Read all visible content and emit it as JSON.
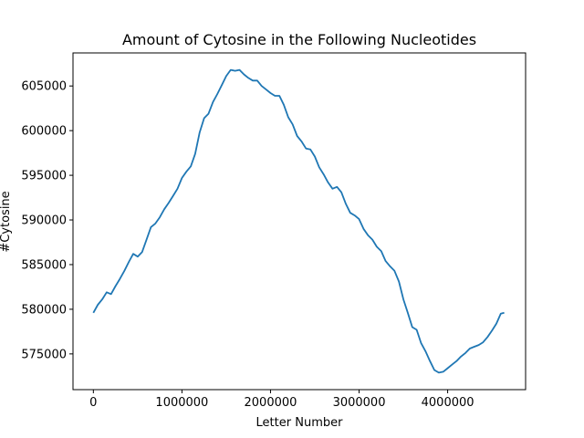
{
  "chart_data": {
    "type": "line",
    "title": "Amount of Cytosine in the Following Nucleotides",
    "xlabel": "Letter Number",
    "ylabel": "#Cytosine",
    "xlim": [
      -230000,
      4880000
    ],
    "ylim": [
      571000,
      608700
    ],
    "x_ticks": [
      0,
      1000000,
      2000000,
      3000000,
      4000000
    ],
    "x_tick_labels": [
      "0",
      "1000000",
      "2000000",
      "3000000",
      "4000000"
    ],
    "y_ticks": [
      575000,
      580000,
      585000,
      590000,
      595000,
      600000,
      605000
    ],
    "y_tick_labels": [
      "575000",
      "580000",
      "585000",
      "590000",
      "595000",
      "600000",
      "605000"
    ],
    "grid": false,
    "legend": "none",
    "line_color": "#1f77b4",
    "series": [
      {
        "x": [
          0,
          50000,
          100000,
          150000,
          200000,
          250000,
          300000,
          350000,
          400000,
          450000,
          500000,
          550000,
          600000,
          650000,
          700000,
          750000,
          800000,
          850000,
          900000,
          950000,
          1000000,
          1050000,
          1100000,
          1150000,
          1200000,
          1250000,
          1300000,
          1350000,
          1400000,
          1450000,
          1500000,
          1550000,
          1600000,
          1650000,
          1700000,
          1750000,
          1800000,
          1850000,
          1900000,
          1950000,
          2000000,
          2050000,
          2100000,
          2150000,
          2200000,
          2250000,
          2300000,
          2350000,
          2400000,
          2450000,
          2500000,
          2550000,
          2600000,
          2650000,
          2700000,
          2750000,
          2800000,
          2850000,
          2900000,
          2950000,
          3000000,
          3050000,
          3100000,
          3150000,
          3200000,
          3250000,
          3300000,
          3350000,
          3400000,
          3450000,
          3500000,
          3550000,
          3600000,
          3650000,
          3700000,
          3750000,
          3800000,
          3850000,
          3900000,
          3950000,
          4000000,
          4050000,
          4100000,
          4150000,
          4200000,
          4250000,
          4300000,
          4350000,
          4400000,
          4450000,
          4500000,
          4550000,
          4600000,
          4639000
        ],
        "values": [
          579600,
          580500,
          581100,
          581900,
          581700,
          582600,
          583400,
          584300,
          585300,
          586200,
          585900,
          586400,
          587800,
          589200,
          589600,
          590300,
          591200,
          591900,
          592700,
          593500,
          594700,
          595400,
          596000,
          597400,
          599800,
          601400,
          601900,
          603200,
          604100,
          605100,
          606100,
          606800,
          606700,
          606800,
          606300,
          605900,
          605600,
          605600,
          605000,
          604600,
          604200,
          603900,
          603900,
          602900,
          601500,
          600700,
          599400,
          598800,
          598000,
          597900,
          597100,
          595900,
          595100,
          594200,
          593500,
          593700,
          593100,
          591800,
          590800,
          590500,
          590100,
          589000,
          588300,
          587800,
          587000,
          586500,
          585400,
          584800,
          584300,
          583100,
          581100,
          579600,
          578000,
          577700,
          576200,
          575300,
          574200,
          573200,
          572900,
          573000,
          573400,
          573800,
          574200,
          574700,
          575100,
          575600,
          575800,
          576000,
          576300,
          576900,
          577600,
          578400,
          579500,
          579600
        ]
      }
    ]
  }
}
